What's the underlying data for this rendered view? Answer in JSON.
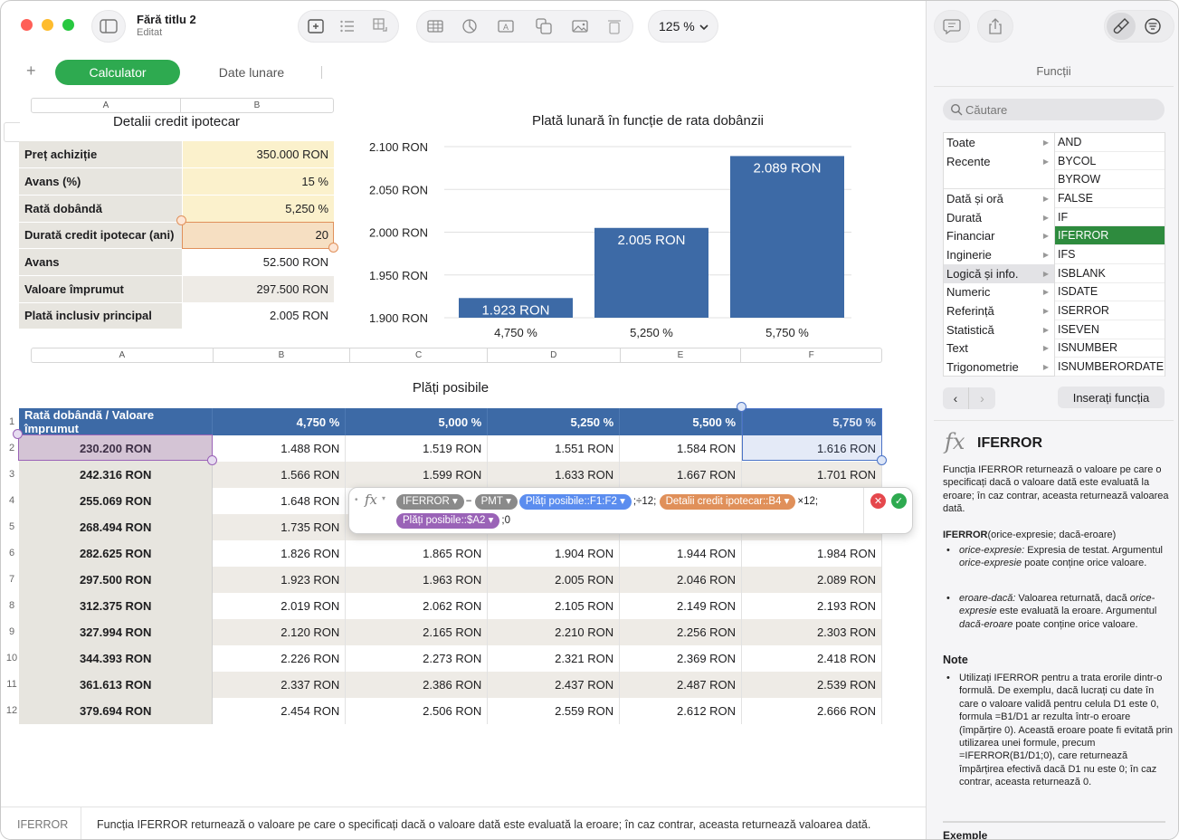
{
  "window": {
    "title": "Fără titlu 2",
    "subtitle": "Editat"
  },
  "toolbar": {
    "zoom": "125 %"
  },
  "tabs": [
    "Calculator",
    "Date lunare"
  ],
  "table1": {
    "title": "Detalii credit ipotecar",
    "col_headers": [
      "A",
      "B"
    ],
    "rows": [
      {
        "label": "Preț achiziție",
        "value": "350.000 RON"
      },
      {
        "label": "Avans (%)",
        "value": "15 %"
      },
      {
        "label": "Rată dobândă",
        "value": "5,250 %"
      },
      {
        "label": "Durată credit ipotecar (ani)",
        "value": "20"
      },
      {
        "label": "Avans",
        "value": "52.500 RON"
      },
      {
        "label": "Valoare împrumut",
        "value": "297.500 RON"
      },
      {
        "label": "Plată inclusiv principal",
        "value": "2.005 RON"
      }
    ]
  },
  "chart_data": {
    "type": "bar",
    "title": "Plată lunară în funcție de rata dobânzii",
    "categories": [
      "4,750 %",
      "5,250 %",
      "5,750 %"
    ],
    "values": [
      1923,
      2005,
      2089
    ],
    "data_labels": [
      "1.923 RON",
      "2.005 RON",
      "2.089 RON"
    ],
    "ylim": [
      1900,
      2100
    ],
    "yticks": [
      "2.100 RON",
      "2.050 RON",
      "2.000 RON",
      "1.950 RON",
      "1.900 RON"
    ],
    "color": "#3d6aa6"
  },
  "table2": {
    "title": "Plăți posibile",
    "col_headers": [
      "A",
      "B",
      "C",
      "D",
      "E",
      "F"
    ],
    "header": [
      "Rată dobândă / Valoare împrumut",
      "4,750 %",
      "5,000 %",
      "5,250 %",
      "5,500 %",
      "5,750 %"
    ],
    "row_numbers": [
      "1",
      "2",
      "3",
      "4",
      "5",
      "6",
      "7",
      "8",
      "9",
      "10",
      "11",
      "12"
    ],
    "rows": [
      [
        "230.200 RON",
        "1.488 RON",
        "1.519 RON",
        "1.551 RON",
        "1.584 RON",
        "1.616 RON"
      ],
      [
        "242.316 RON",
        "1.566 RON",
        "1.599 RON",
        "1.633 RON",
        "1.667 RON",
        "1.701 RON"
      ],
      [
        "255.069 RON",
        "1.648 RON",
        "",
        "",
        "",
        ""
      ],
      [
        "268.494 RON",
        "1.735 RON",
        "",
        "",
        "",
        ""
      ],
      [
        "282.625 RON",
        "1.826 RON",
        "1.865 RON",
        "1.904 RON",
        "1.944 RON",
        "1.984 RON"
      ],
      [
        "297.500 RON",
        "1.923 RON",
        "1.963 RON",
        "2.005 RON",
        "2.046 RON",
        "2.089 RON"
      ],
      [
        "312.375 RON",
        "2.019 RON",
        "2.062 RON",
        "2.105 RON",
        "2.149 RON",
        "2.193 RON"
      ],
      [
        "327.994 RON",
        "2.120 RON",
        "2.165 RON",
        "2.210 RON",
        "2.256 RON",
        "2.303 RON"
      ],
      [
        "344.393 RON",
        "2.226 RON",
        "2.273 RON",
        "2.321 RON",
        "2.369 RON",
        "2.418 RON"
      ],
      [
        "361.613 RON",
        "2.337 RON",
        "2.386 RON",
        "2.437 RON",
        "2.487 RON",
        "2.539 RON"
      ],
      [
        "379.694 RON",
        "2.454 RON",
        "2.506 RON",
        "2.559 RON",
        "2.612 RON",
        "2.666 RON"
      ]
    ]
  },
  "formula": {
    "fx": "fx",
    "iferror": "IFERROR",
    "minus": "−",
    "pmt": "PMT",
    "ref1": "Plăți posibile::F1:F2",
    "sep1": ";÷12;",
    "ref2": "Detalii credit ipotecar::B4",
    "sep2": "×12;",
    "ref3": "Plăți posibile::$A2",
    "tail": ";0"
  },
  "status_bar": {
    "name": "IFERROR",
    "description": "Funcția IFERROR returnează o valoare pe care o specificați dacă o valoare dată este evaluată la eroare; în caz contrar, aceasta returnează valoarea dată."
  },
  "sidebar": {
    "title": "Funcții",
    "search_placeholder": "Căutare",
    "categories": [
      "Toate",
      "Recente",
      "",
      "Dată și oră",
      "Durată",
      "Financiar",
      "Inginerie",
      "Logică și info.",
      "Numeric",
      "Referință",
      "Statistică",
      "Text",
      "Trigonometrie"
    ],
    "functions": [
      "AND",
      "BYCOL",
      "BYROW",
      "FALSE",
      "IF",
      "IFERROR",
      "IFS",
      "ISBLANK",
      "ISDATE",
      "ISERROR",
      "ISEVEN",
      "ISNUMBER",
      "ISNUMBERORDATE"
    ],
    "selected_function": "IFERROR",
    "insert_button": "Inserați funcția",
    "help": {
      "fx": "fx",
      "name": "IFERROR",
      "desc": "Funcția IFERROR returnează o valoare pe care o specificați dacă o valoare dată este evaluată la eroare; în caz contrar, aceasta returnează valoarea dată.",
      "syntax_name": "IFERROR",
      "syntax_args": "(orice-expresie; dacă-eroare)",
      "arg1_name": "orice-expresie:",
      "arg1_a": " Expresia de testat. Argumentul ",
      "arg1_b": "orice-expresie",
      "arg1_c": " poate conține orice valoare.",
      "arg2_name": "eroare-dacă:",
      "arg2_a": " Valoarea returnată, dacă ",
      "arg2_b": "orice-expresie",
      "arg2_c": " este evaluată la eroare. Argumentul ",
      "arg2_d": "dacă-eroare",
      "arg2_e": " poate conține orice valoare.",
      "notes_title": "Note",
      "note1": "Utilizați IFERROR pentru a trata erorile dintr-o formulă. De exemplu, dacă lucrați cu date în care o valoare validă pentru celula D1 este 0, formula =B1/D1 ar rezulta într-o eroare (împărțire 0). Această eroare poate fi evitată prin utilizarea unei formule, precum =IFERROR(B1/D1;0), care returnează împărțirea efectivă dacă D1 nu este 0; în caz contrar, aceasta returnează 0.",
      "examples_title": "Exemple"
    }
  }
}
